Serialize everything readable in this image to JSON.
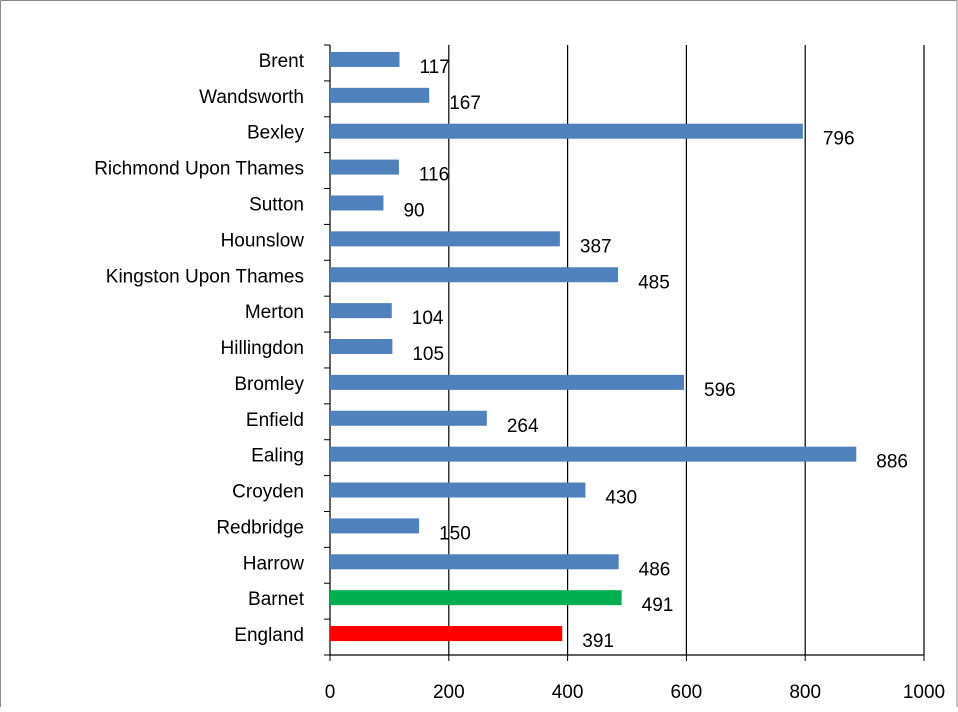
{
  "chart_data": {
    "type": "barh",
    "categories": [
      "Brent",
      "Wandsworth",
      "Bexley",
      "Richmond Upon Thames",
      "Sutton",
      "Hounslow",
      "Kingston Upon Thames",
      "Merton",
      "Hillingdon",
      "Bromley",
      "Enfield",
      "Ealing",
      "Croyden",
      "Redbridge",
      "Harrow",
      "Barnet",
      "England"
    ],
    "values": [
      117,
      167,
      796,
      116,
      90,
      387,
      485,
      104,
      105,
      596,
      264,
      886,
      430,
      150,
      486,
      491,
      391
    ],
    "colors": [
      "#4f81bd",
      "#4f81bd",
      "#4f81bd",
      "#4f81bd",
      "#4f81bd",
      "#4f81bd",
      "#4f81bd",
      "#4f81bd",
      "#4f81bd",
      "#4f81bd",
      "#4f81bd",
      "#4f81bd",
      "#4f81bd",
      "#4f81bd",
      "#4f81bd",
      "#00b050",
      "#ff0000"
    ],
    "xlim": [
      0,
      1000
    ],
    "xticks": [
      0,
      200,
      400,
      600,
      800,
      1000
    ],
    "grid": true
  }
}
